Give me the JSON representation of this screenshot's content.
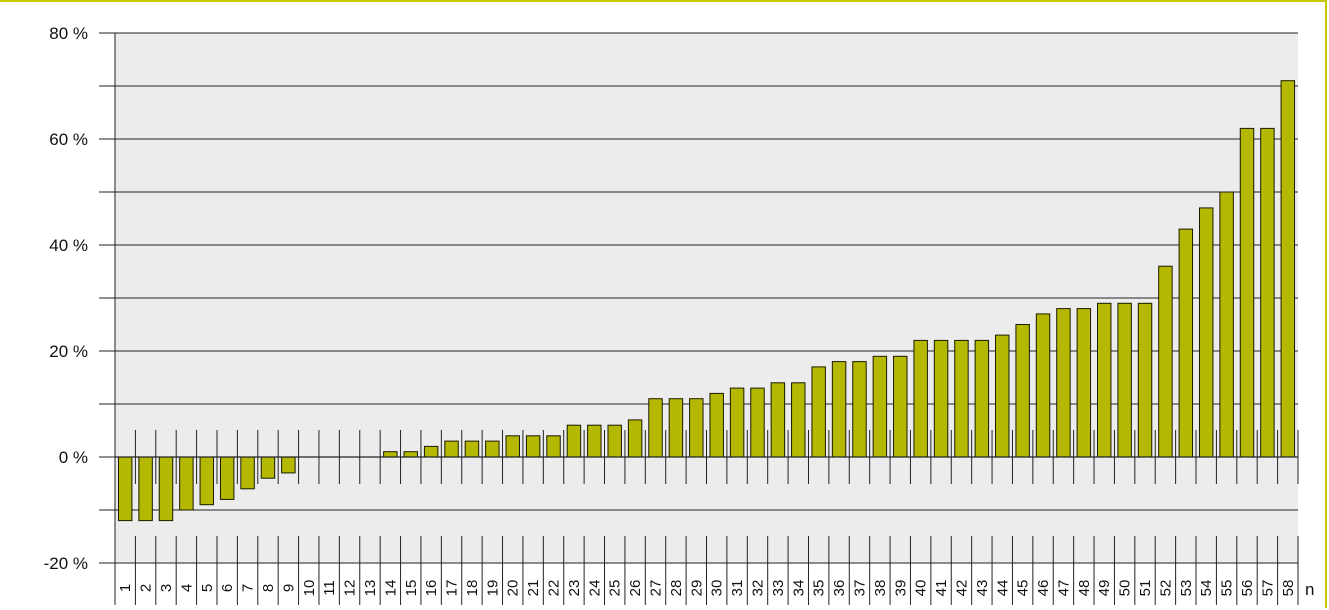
{
  "chart_data": {
    "type": "bar",
    "categories": [
      "1",
      "2",
      "3",
      "4",
      "5",
      "6",
      "7",
      "8",
      "9",
      "10",
      "11",
      "12",
      "13",
      "14",
      "15",
      "16",
      "17",
      "18",
      "19",
      "20",
      "21",
      "22",
      "23",
      "24",
      "25",
      "26",
      "27",
      "28",
      "29",
      "30",
      "31",
      "32",
      "33",
      "34",
      "35",
      "36",
      "37",
      "38",
      "39",
      "40",
      "41",
      "42",
      "43",
      "44",
      "45",
      "46",
      "47",
      "48",
      "49",
      "50",
      "51",
      "52",
      "53",
      "54",
      "55",
      "56",
      "57",
      "58"
    ],
    "values": [
      -12,
      -12,
      -12,
      -10,
      -9,
      -8,
      -6,
      -4,
      -3,
      0,
      0,
      0,
      0,
      1,
      1,
      2,
      3,
      3,
      3,
      4,
      4,
      4,
      6,
      6,
      6,
      7,
      11,
      11,
      11,
      12,
      13,
      13,
      14,
      14,
      17,
      18,
      18,
      19,
      19,
      22,
      22,
      22,
      22,
      23,
      25,
      27,
      28,
      28,
      29,
      29,
      29,
      36,
      43,
      47,
      50,
      62,
      62,
      71
    ],
    "ylim": [
      -20,
      80
    ],
    "yticks": [
      -20,
      0,
      20,
      40,
      60,
      80
    ],
    "ytick_labels": [
      "-20 %",
      "0 %",
      "20 %",
      "40 %",
      "60 %",
      "80 %"
    ],
    "xlabel": "n",
    "ylabel": "",
    "title": "",
    "grid": true,
    "colors": {
      "bar": "#b5b800",
      "bar_edge": "#1a1a00",
      "plot_bg": "#ececec",
      "frame": "#c8c800"
    }
  }
}
